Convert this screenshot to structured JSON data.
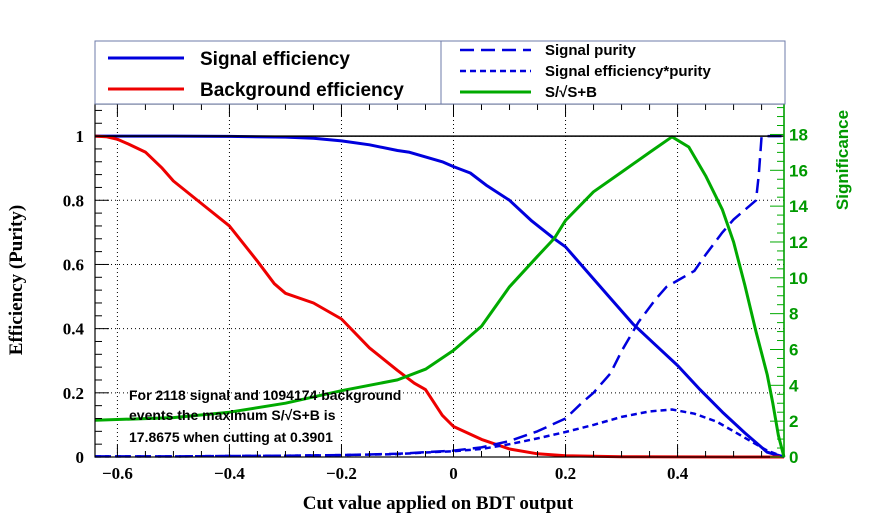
{
  "chart_data": {
    "type": "line",
    "title": "",
    "xlabel": "Cut value applied on BDT output",
    "ylabel": "Efficiency (Purity)",
    "y2label": "Significance",
    "xlim": [
      -0.64,
      0.59
    ],
    "ylim": [
      0,
      1.1
    ],
    "y2lim": [
      0,
      19.7
    ],
    "xticks": [
      -0.6,
      -0.4,
      -0.2,
      0,
      0.2,
      0.4
    ],
    "xtick_labels": [
      "−0.6",
      "−0.4",
      "−0.2",
      "0",
      "0.2",
      "0.4"
    ],
    "yticks": [
      0,
      0.2,
      0.4,
      0.6,
      0.8,
      1
    ],
    "ytick_labels": [
      "0",
      "0.2",
      "0.4",
      "0.6",
      "0.8",
      "1"
    ],
    "y2ticks": [
      0,
      2,
      4,
      6,
      8,
      10,
      12,
      14,
      16,
      18
    ],
    "y2tick_labels": [
      "0",
      "2",
      "4",
      "6",
      "8",
      "10",
      "12",
      "14",
      "16",
      "18"
    ],
    "grid": true,
    "reference_line_y": 1.0,
    "series": [
      {
        "name": "Signal efficiency",
        "axis": "left",
        "color": "#0000dd",
        "style": "solid",
        "x": [
          -0.64,
          -0.5,
          -0.4,
          -0.3,
          -0.25,
          -0.2,
          -0.15,
          -0.1,
          -0.08,
          -0.05,
          -0.02,
          0,
          0.03,
          0.06,
          0.1,
          0.14,
          0.18,
          0.2,
          0.24,
          0.28,
          0.32,
          0.36,
          0.4,
          0.44,
          0.48,
          0.52,
          0.56,
          0.59
        ],
        "values": [
          1.0,
          1.0,
          0.999,
          0.997,
          0.993,
          0.985,
          0.973,
          0.955,
          0.95,
          0.935,
          0.92,
          0.905,
          0.885,
          0.845,
          0.8,
          0.735,
          0.68,
          0.655,
          0.575,
          0.495,
          0.415,
          0.35,
          0.285,
          0.21,
          0.14,
          0.075,
          0.015,
          0.0
        ]
      },
      {
        "name": "Background efficiency",
        "axis": "left",
        "color": "#ee0000",
        "style": "solid",
        "x": [
          -0.64,
          -0.62,
          -0.6,
          -0.58,
          -0.55,
          -0.52,
          -0.5,
          -0.45,
          -0.4,
          -0.35,
          -0.32,
          -0.3,
          -0.25,
          -0.2,
          -0.15,
          -0.1,
          -0.07,
          -0.05,
          -0.02,
          0,
          0.05,
          0.1,
          0.15,
          0.2,
          0.3,
          0.4,
          0.5,
          0.59
        ],
        "values": [
          1.0,
          0.998,
          0.99,
          0.975,
          0.95,
          0.9,
          0.86,
          0.79,
          0.72,
          0.61,
          0.54,
          0.51,
          0.48,
          0.43,
          0.34,
          0.27,
          0.23,
          0.21,
          0.13,
          0.095,
          0.055,
          0.025,
          0.01,
          0.004,
          0.001,
          0.0004,
          0.0001,
          0.0
        ]
      },
      {
        "name": "Signal purity",
        "axis": "left",
        "color": "#0000dd",
        "style": "long-dash",
        "x": [
          -0.64,
          -0.5,
          -0.4,
          -0.3,
          -0.2,
          -0.1,
          -0.05,
          0,
          0.05,
          0.1,
          0.15,
          0.2,
          0.23,
          0.25,
          0.28,
          0.3,
          0.33,
          0.36,
          0.38,
          0.4,
          0.43,
          0.45,
          0.48,
          0.5,
          0.52,
          0.54,
          0.545,
          0.55,
          0.59
        ],
        "values": [
          0.002,
          0.002,
          0.003,
          0.004,
          0.006,
          0.01,
          0.015,
          0.02,
          0.03,
          0.05,
          0.08,
          0.12,
          0.17,
          0.2,
          0.26,
          0.33,
          0.42,
          0.49,
          0.53,
          0.55,
          0.58,
          0.63,
          0.7,
          0.74,
          0.77,
          0.8,
          0.88,
          1.0,
          1.0
        ]
      },
      {
        "name": "Signal efficiency*purity",
        "axis": "left",
        "color": "#0000dd",
        "style": "short-dash",
        "x": [
          -0.64,
          -0.5,
          -0.4,
          -0.3,
          -0.2,
          -0.1,
          -0.05,
          0,
          0.05,
          0.1,
          0.15,
          0.2,
          0.25,
          0.3,
          0.35,
          0.39,
          0.43,
          0.47,
          0.5,
          0.53,
          0.56,
          0.59
        ],
        "values": [
          0.002,
          0.002,
          0.003,
          0.004,
          0.006,
          0.009,
          0.014,
          0.018,
          0.025,
          0.04,
          0.058,
          0.078,
          0.1,
          0.125,
          0.142,
          0.148,
          0.135,
          0.11,
          0.08,
          0.05,
          0.02,
          0.0
        ]
      },
      {
        "name": "S/√S+B",
        "axis": "right",
        "color": "#00aa00",
        "style": "solid",
        "x": [
          -0.64,
          -0.5,
          -0.4,
          -0.3,
          -0.2,
          -0.1,
          -0.05,
          0,
          0.05,
          0.1,
          0.15,
          0.18,
          0.2,
          0.25,
          0.3,
          0.35,
          0.39,
          0.42,
          0.45,
          0.48,
          0.5,
          0.52,
          0.54,
          0.56,
          0.57,
          0.58,
          0.59
        ],
        "values": [
          2.05,
          2.2,
          2.5,
          3.0,
          3.7,
          4.3,
          4.9,
          5.95,
          7.3,
          9.5,
          11.2,
          12.2,
          13.2,
          14.8,
          15.9,
          17.0,
          17.87,
          17.3,
          15.7,
          13.8,
          12.0,
          9.6,
          7.0,
          4.6,
          3.0,
          1.2,
          0.0
        ]
      }
    ],
    "legend": {
      "placement": "top",
      "entries": [
        {
          "label": "Signal efficiency",
          "series": 0
        },
        {
          "label": "Background efficiency",
          "series": 1
        },
        {
          "label": "Signal purity",
          "series": 2
        },
        {
          "label": "Signal efficiency*purity",
          "series": 3
        },
        {
          "label": "S/√S+B",
          "series": 4
        }
      ]
    },
    "annotation": {
      "lines": [
        "For 2118 signal and 1094174 background",
        "events the maximum S/√S+B is",
        "17.8675 when cutting at 0.3901"
      ]
    }
  },
  "colors": {
    "signal": "#0000dd",
    "background": "#ee0000",
    "significance": "#00aa00",
    "right_axis": "#009900"
  }
}
